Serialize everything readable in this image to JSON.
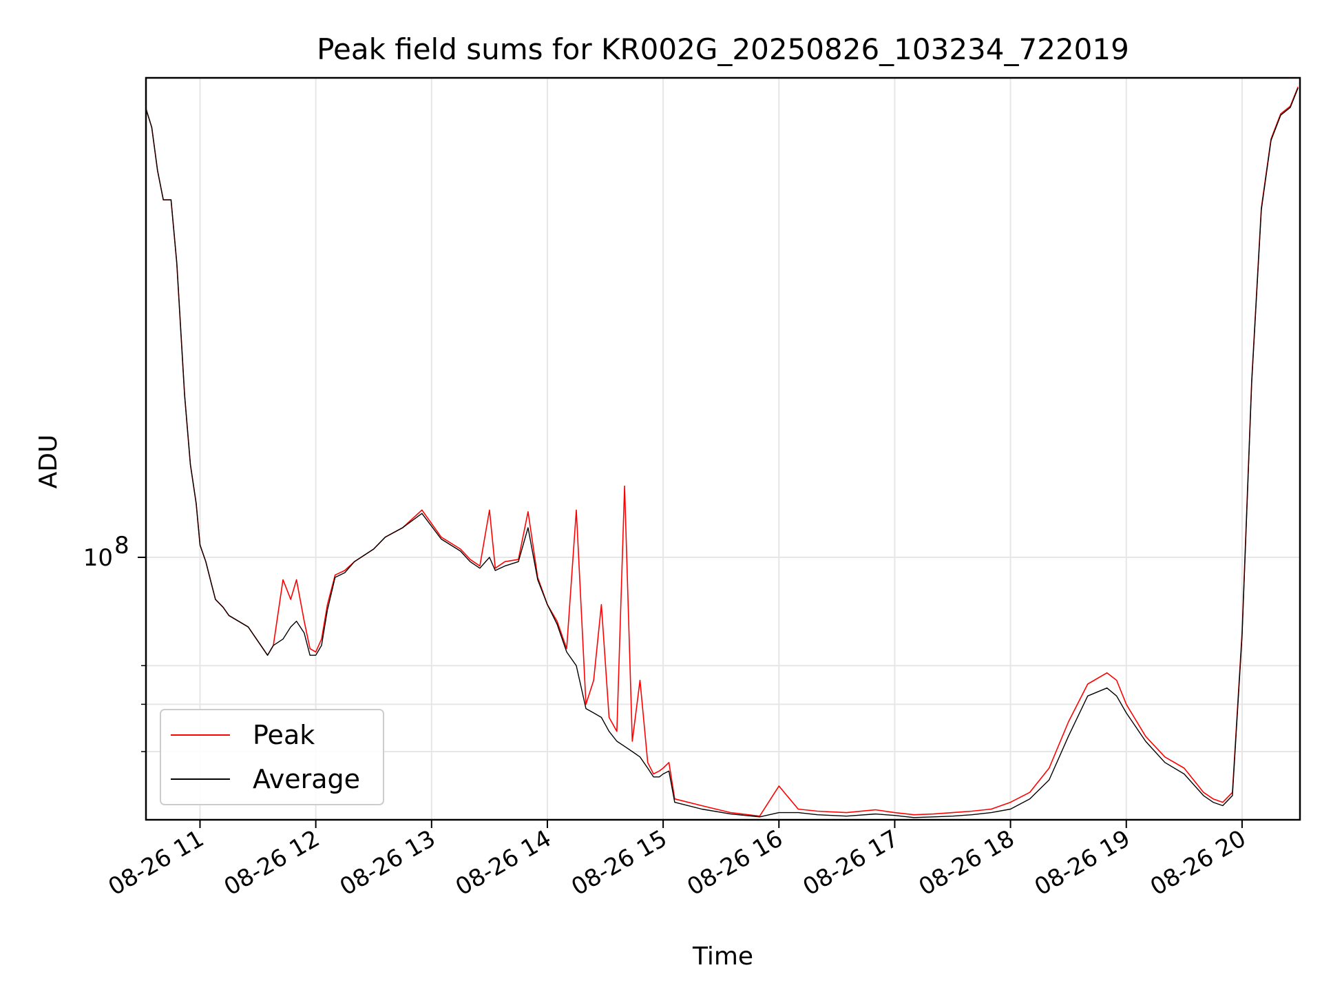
{
  "chart_data": {
    "type": "line",
    "title": "Peak field sums for KR002G_20250826_103234_722019",
    "xlabel": "Time",
    "ylabel": "ADU",
    "yscale": "log",
    "grid": true,
    "legend_position": "lower-left",
    "xlim": [
      "2025-08-26 10:32",
      "2025-08-26 20:30"
    ],
    "ylim": [
      29000000,
      960000000
    ],
    "x_ticks": [
      "08-26 11",
      "08-26 12",
      "08-26 13",
      "08-26 14",
      "08-26 15",
      "08-26 16",
      "08-26 17",
      "08-26 18",
      "08-26 19",
      "08-26 20"
    ],
    "y_ticks": [
      {
        "value": 100000000,
        "base": "10",
        "exp": "8"
      }
    ],
    "x": [
      "10:32",
      "10:35",
      "10:38",
      "10:41",
      "10:45",
      "10:48",
      "10:52",
      "10:55",
      "10:58",
      "11:00",
      "11:03",
      "11:06",
      "11:08",
      "11:12",
      "11:15",
      "11:25",
      "11:35",
      "11:38",
      "11:43",
      "11:47",
      "11:50",
      "11:54",
      "11:57",
      "12:00",
      "12:03",
      "12:06",
      "12:10",
      "12:15",
      "12:20",
      "12:30",
      "12:36",
      "12:45",
      "12:55",
      "13:05",
      "13:15",
      "13:20",
      "13:25",
      "13:30",
      "13:33",
      "13:38",
      "13:45",
      "13:50",
      "13:55",
      "14:00",
      "14:05",
      "14:10",
      "14:15",
      "14:20",
      "14:24",
      "14:28",
      "14:32",
      "14:36",
      "14:40",
      "14:44",
      "14:48",
      "14:52",
      "14:55",
      "14:58",
      "15:00",
      "15:03",
      "15:06",
      "15:20",
      "15:35",
      "15:50",
      "16:00",
      "16:10",
      "16:20",
      "16:35",
      "16:50",
      "17:00",
      "17:10",
      "17:20",
      "17:30",
      "17:40",
      "17:50",
      "18:00",
      "18:10",
      "18:20",
      "18:30",
      "18:40",
      "18:50",
      "18:55",
      "19:00",
      "19:10",
      "19:20",
      "19:30",
      "19:40",
      "19:45",
      "19:50",
      "19:55",
      "20:00",
      "20:05",
      "20:10",
      "20:15",
      "20:20",
      "20:25",
      "20:29"
    ],
    "series": [
      {
        "name": "Peak",
        "color": "#ff0000",
        "values": [
          830000000,
          760000000,
          620000000,
          540000000,
          540000000,
          400000000,
          215000000,
          155000000,
          129000000,
          106000000,
          98000000,
          88000000,
          82000000,
          79000000,
          76000000,
          72000000,
          63000000,
          66000000,
          90000000,
          82000000,
          90000000,
          74000000,
          65000000,
          64000000,
          68000000,
          80000000,
          92000000,
          94000000,
          98000000,
          104000000,
          110000000,
          115000000,
          125000000,
          110000000,
          104000000,
          99000000,
          96000000,
          125000000,
          95000000,
          98000000,
          99000000,
          124000000,
          91000000,
          80000000,
          74000000,
          65000000,
          125000000,
          50000000,
          56000000,
          80000000,
          47000000,
          44000000,
          140000000,
          42000000,
          56000000,
          38000000,
          36000000,
          36500000,
          37000000,
          38000000,
          32000000,
          31000000,
          30000000,
          29500000,
          34000000,
          30500000,
          30200000,
          30000000,
          30400000,
          30000000,
          29700000,
          29800000,
          30000000,
          30200000,
          30500000,
          31500000,
          33000000,
          37000000,
          46000000,
          55000000,
          58000000,
          56000000,
          50000000,
          43000000,
          39000000,
          37000000,
          33000000,
          32000000,
          31500000,
          33000000,
          70000000,
          230000000,
          520000000,
          720000000,
          810000000,
          840000000,
          920000000
        ]
      },
      {
        "name": "Average",
        "color": "#000000",
        "values": [
          830000000,
          760000000,
          620000000,
          540000000,
          540000000,
          400000000,
          215000000,
          155000000,
          129000000,
          106000000,
          98000000,
          88000000,
          82000000,
          79000000,
          76000000,
          72000000,
          63000000,
          66000000,
          68000000,
          72000000,
          74000000,
          70000000,
          63000000,
          63000000,
          66000000,
          78000000,
          91000000,
          93000000,
          98000000,
          104000000,
          110000000,
          115000000,
          123000000,
          109000000,
          103000000,
          98000000,
          95000000,
          100000000,
          94000000,
          96000000,
          98000000,
          115000000,
          90000000,
          80000000,
          73000000,
          64000000,
          60000000,
          49000000,
          48000000,
          47000000,
          44000000,
          42000000,
          41000000,
          40000000,
          39000000,
          37000000,
          35500000,
          35500000,
          36000000,
          36500000,
          31500000,
          30500000,
          29800000,
          29400000,
          30000000,
          30000000,
          29700000,
          29500000,
          29800000,
          29600000,
          29300000,
          29400000,
          29500000,
          29700000,
          30000000,
          30500000,
          32000000,
          35000000,
          43000000,
          52000000,
          54000000,
          52000000,
          48000000,
          42000000,
          38000000,
          36000000,
          32500000,
          31500000,
          31000000,
          32500000,
          69000000,
          228000000,
          515000000,
          715000000,
          805000000,
          835000000,
          915000000
        ]
      }
    ],
    "legend": [
      {
        "label": "Peak",
        "color": "#ff0000"
      },
      {
        "label": "Average",
        "color": "#000000"
      }
    ]
  }
}
